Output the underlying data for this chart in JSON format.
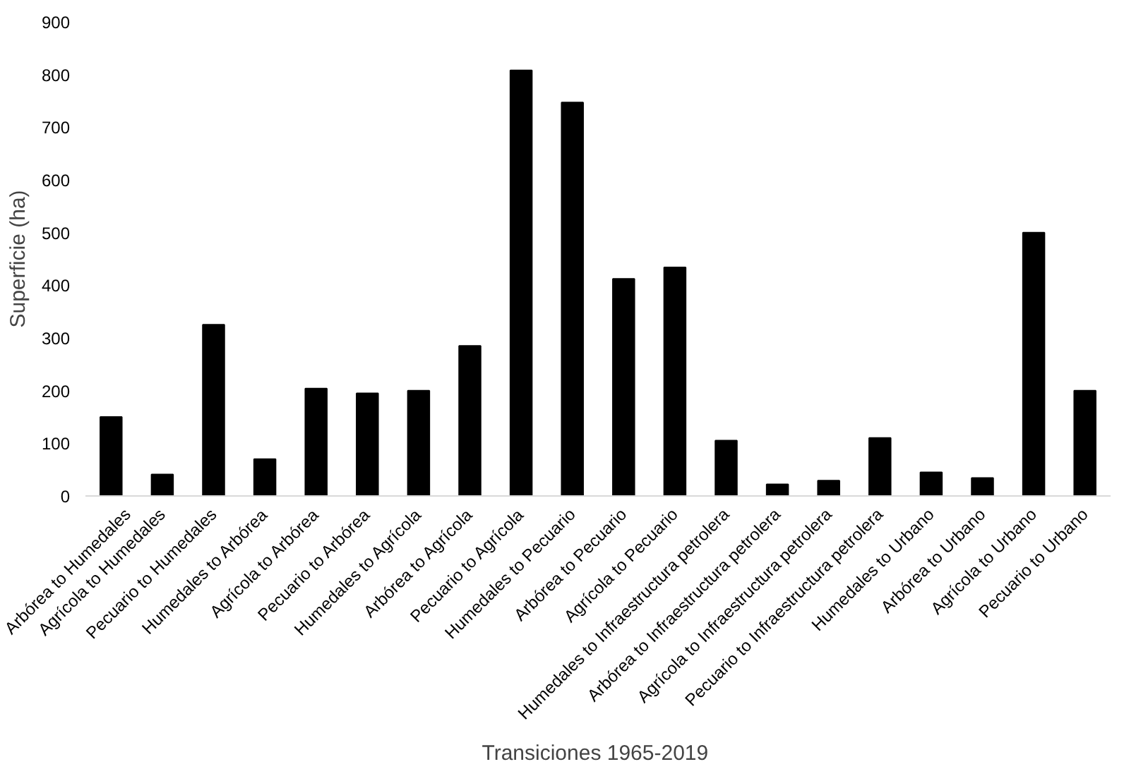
{
  "chart_data": {
    "type": "bar",
    "xlabel": "Transiciones  1965-2019",
    "ylabel": "Superficie (ha)",
    "categories": [
      "Arbórea to Humedales",
      "Agrícola to Humedales",
      "Pecuario to Humedales",
      "Humedales to Arbórea",
      "Agrícola to Arbórea",
      "Pecuario to Arbórea",
      "Humedales to Agrícola",
      "Arbórea to Agrícola",
      "Pecuario to Agrícola",
      "Humedales to Pecuario",
      "Arbórea to Pecuario",
      "Agrícola to Pecuario",
      "Humedales to Infraestructura petrolera",
      "Arbórea to Infraestructura petrolera",
      "Agrícola to Infraestructura petrolera",
      "Pecuario to Infraestructura petrolera",
      "Humedales to Urbano",
      "Arbórea to Urbano",
      "Agrícola to Urbano",
      "Pecuario to Urbano"
    ],
    "values": [
      150,
      41,
      325,
      70,
      204,
      195,
      200,
      285,
      808,
      747,
      412,
      434,
      105,
      22,
      29,
      110,
      45,
      34,
      500,
      200
    ],
    "color": "#000000",
    "ylim": [
      0,
      900
    ],
    "yticks": [
      0,
      100,
      200,
      300,
      400,
      500,
      600,
      700,
      800,
      900
    ],
    "grid": false
  }
}
